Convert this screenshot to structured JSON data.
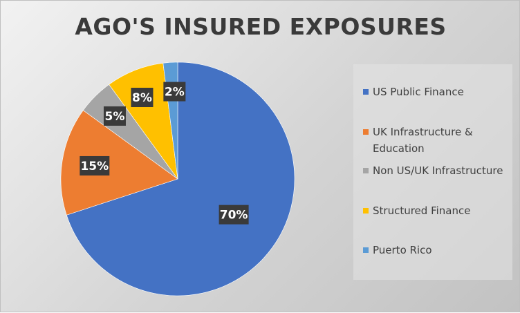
{
  "chart_data": {
    "type": "pie",
    "title": "AGO'S INSURED EXPOSURES",
    "categories": [
      "US Public Finance",
      "UK Infrastructure & Education",
      "Non US/UK Infrastructure",
      "Structured Finance",
      "Puerto Rico"
    ],
    "values": [
      70,
      15,
      5,
      8,
      2
    ],
    "data_labels": [
      "70%",
      "15%",
      "5%",
      "8%",
      "2%"
    ],
    "colors": [
      "#4472c4",
      "#ed7d31",
      "#a5a5a5",
      "#ffc000",
      "#5b9bd5"
    ],
    "legend_position": "right",
    "start_angle": "12 o'clock, clockwise"
  }
}
